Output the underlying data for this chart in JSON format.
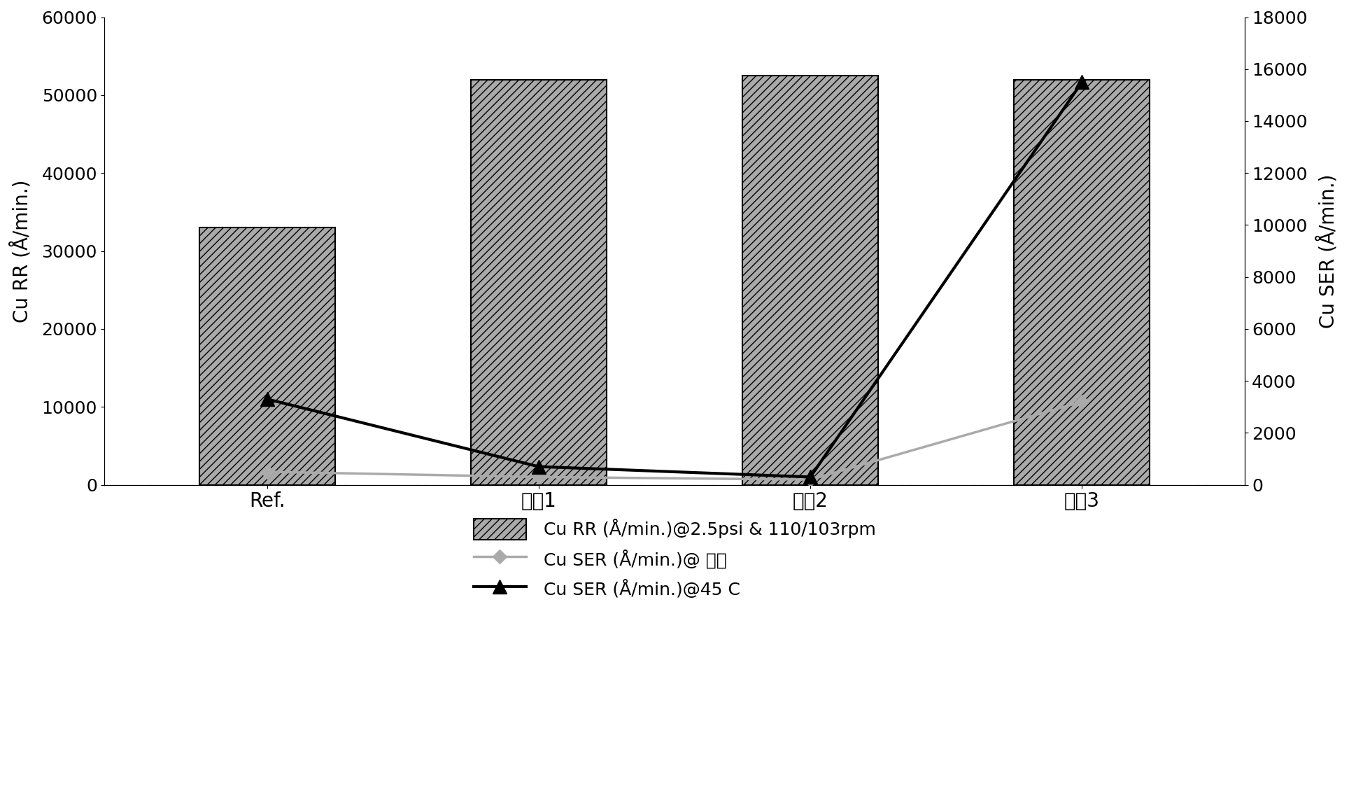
{
  "categories": [
    "Ref.",
    "浆枙1",
    "浆枙2",
    "浆枙3"
  ],
  "cu_rr": [
    33000,
    52000,
    52500,
    52000
  ],
  "cu_ser_room": [
    500,
    300,
    200,
    3200
  ],
  "cu_ser_45c": [
    3300,
    700,
    300,
    15500
  ],
  "left_ylim": [
    0,
    60000
  ],
  "left_yticks": [
    0,
    10000,
    20000,
    30000,
    40000,
    50000,
    60000
  ],
  "right_ylim": [
    0,
    18000
  ],
  "right_yticks": [
    0,
    2000,
    4000,
    6000,
    8000,
    10000,
    12000,
    14000,
    16000,
    18000
  ],
  "ylabel_left": "Cu RR (Å/min.)",
  "ylabel_right": "Cu SER (Å/min.)",
  "legend1": "Cu RR (Å/min.)@2.5psi & 110/103rpm",
  "legend2": "Cu SER (Å/min.)@ 室温",
  "legend3": "Cu SER (Å/min.)@45 C",
  "bar_hatch": "///",
  "bar_color": "#aaaaaa",
  "bar_edgecolor": "#000000",
  "line_room_color": "#aaaaaa",
  "line_45c_color": "#000000",
  "background_color": "#ffffff",
  "fig_width": 19.28,
  "fig_height": 11.5
}
